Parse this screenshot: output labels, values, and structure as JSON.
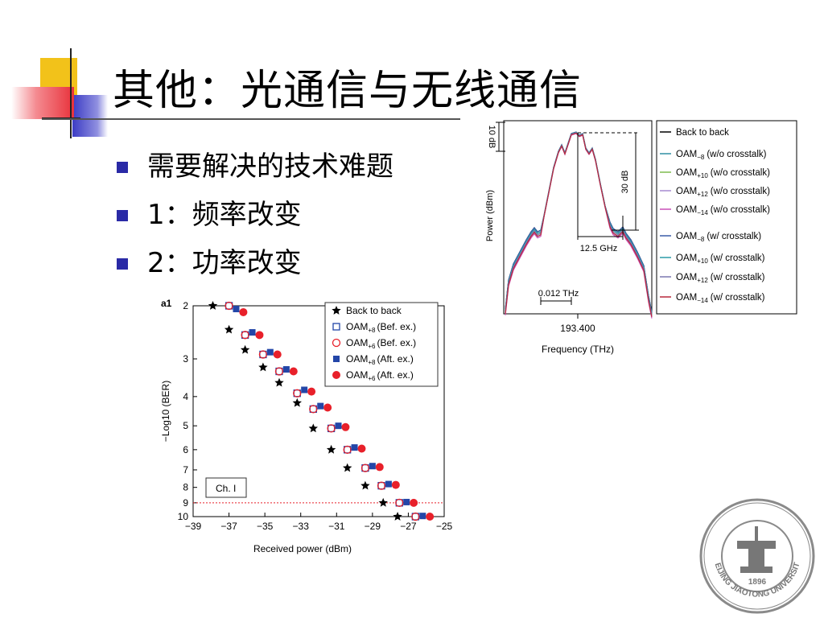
{
  "slide": {
    "title": "其他：光通信与无线通信",
    "bullets": [
      "需要解决的技术难题",
      "1：频率改变",
      "2：功率改变"
    ]
  },
  "colors": {
    "bullet": "#2a2aa6",
    "deco_yellow": "#f2c21a",
    "deco_red": "#e8313a",
    "deco_blue": "#3c3cc4",
    "marker_red": "#e8202a",
    "marker_blue": "#2346a8"
  },
  "chart_data": [
    {
      "type": "scatter",
      "panel_label": "a1",
      "xlabel": "Received power (dBm)",
      "ylabel": "−Log10 (BER)",
      "xlim": [
        -39,
        -25
      ],
      "ylim": [
        2,
        10
      ],
      "x_ticks": [
        "−39",
        "−37",
        "−35",
        "−33",
        "−31",
        "−29",
        "−27",
        "−25"
      ],
      "y_ticks": [
        "2",
        "3",
        "4",
        "5",
        "6",
        "7",
        "8",
        "9",
        "10"
      ],
      "channel_label": "Ch. I",
      "threshold_y": 9,
      "legend": {
        "names": [
          "Back to back",
          "OAM",
          "OAM",
          "OAM",
          "OAM"
        ],
        "subs": [
          "",
          "+8",
          "+6",
          "+8",
          "+6"
        ],
        "notes": [
          "",
          "(Bef. ex.)",
          "(Bef. ex.)",
          "(Aft. ex.)",
          "(Aft. ex.)"
        ]
      },
      "series": [
        {
          "name": "Back to back",
          "marker": "star",
          "color": "#000000",
          "points": [
            [
              -37.9,
              2.0
            ],
            [
              -37.0,
              2.4
            ],
            [
              -36.1,
              2.8
            ],
            [
              -35.1,
              3.2
            ],
            [
              -34.2,
              3.6
            ],
            [
              -33.2,
              4.2
            ],
            [
              -32.3,
              5.1
            ],
            [
              -31.3,
              6.0
            ],
            [
              -30.4,
              6.9
            ],
            [
              -29.4,
              7.9
            ],
            [
              -28.4,
              9.0
            ],
            [
              -27.6,
              10.0
            ]
          ]
        },
        {
          "name": "OAM+8 (Bef. ex.)",
          "marker": "open-square",
          "color": "#2346a8",
          "points": [
            [
              -37.0,
              2.0
            ],
            [
              -36.1,
              2.5
            ],
            [
              -35.1,
              2.9
            ],
            [
              -34.2,
              3.3
            ],
            [
              -33.2,
              3.9
            ],
            [
              -32.3,
              4.4
            ],
            [
              -31.3,
              5.1
            ],
            [
              -30.4,
              6.0
            ],
            [
              -29.4,
              6.9
            ],
            [
              -28.5,
              7.9
            ],
            [
              -27.5,
              9.0
            ],
            [
              -26.6,
              10.0
            ]
          ]
        },
        {
          "name": "OAM+6 (Bef. ex.)",
          "marker": "open-circle",
          "color": "#e8202a",
          "points": [
            [
              -37.0,
              2.0
            ],
            [
              -36.1,
              2.5
            ],
            [
              -35.1,
              2.9
            ],
            [
              -34.2,
              3.3
            ],
            [
              -33.2,
              3.9
            ],
            [
              -32.3,
              4.4
            ],
            [
              -31.3,
              5.1
            ],
            [
              -30.4,
              6.0
            ],
            [
              -29.4,
              6.9
            ],
            [
              -28.5,
              7.9
            ],
            [
              -27.5,
              9.0
            ],
            [
              -26.6,
              10.0
            ]
          ]
        },
        {
          "name": "OAM+8 (Aft. ex.)",
          "marker": "filled-square",
          "color": "#2346a8",
          "points": [
            [
              -36.6,
              2.05
            ],
            [
              -35.7,
              2.45
            ],
            [
              -34.7,
              2.85
            ],
            [
              -33.8,
              3.25
            ],
            [
              -32.8,
              3.8
            ],
            [
              -31.9,
              4.3
            ],
            [
              -30.9,
              5.0
            ],
            [
              -30.0,
              5.9
            ],
            [
              -29.0,
              6.8
            ],
            [
              -28.1,
              7.8
            ],
            [
              -27.1,
              8.95
            ],
            [
              -26.2,
              9.95
            ]
          ]
        },
        {
          "name": "OAM+6 (Aft. ex.)",
          "marker": "filled-circle",
          "color": "#e8202a",
          "points": [
            [
              -36.2,
              2.1
            ],
            [
              -35.3,
              2.5
            ],
            [
              -34.3,
              2.9
            ],
            [
              -33.4,
              3.3
            ],
            [
              -32.4,
              3.85
            ],
            [
              -31.5,
              4.35
            ],
            [
              -30.5,
              5.05
            ],
            [
              -29.6,
              5.95
            ],
            [
              -28.6,
              6.85
            ],
            [
              -27.7,
              7.85
            ],
            [
              -26.7,
              9.0
            ],
            [
              -25.8,
              10.0
            ]
          ]
        }
      ]
    },
    {
      "type": "line",
      "xlabel": "Frequency (THz)",
      "ylabel": "Power (dBm)",
      "x_tick": "193.400",
      "annotations": [
        "10 dB",
        "30 dB",
        "12.5 GHz",
        "0.012 THz"
      ],
      "legend": {
        "names": [
          "Back to back",
          "OAM",
          "OAM",
          "OAM",
          "OAM",
          "OAM",
          "OAM",
          "OAM",
          "OAM"
        ],
        "subs": [
          "",
          "−8",
          "+10",
          "+12",
          "−14",
          "−8",
          "+10",
          "+12",
          "−14"
        ],
        "notes": [
          "",
          "(w/o crosstalk)",
          "(w/o crosstalk)",
          "(w/o crosstalk)",
          "(w/o crosstalk)",
          "(w/ crosstalk)",
          "(w/ crosstalk)",
          "(w/ crosstalk)",
          "(w/ crosstalk)"
        ],
        "colors": [
          "#000000",
          "#2f8fa3",
          "#7dbb4e",
          "#a78bd0",
          "#c84fb7",
          "#3a5ca8",
          "#2a9aa8",
          "#7b78b0",
          "#b8283a"
        ]
      }
    }
  ],
  "seal": {
    "year": "1896",
    "ring_text": "BEIJING JIAOTONG UNIVERSITY"
  }
}
